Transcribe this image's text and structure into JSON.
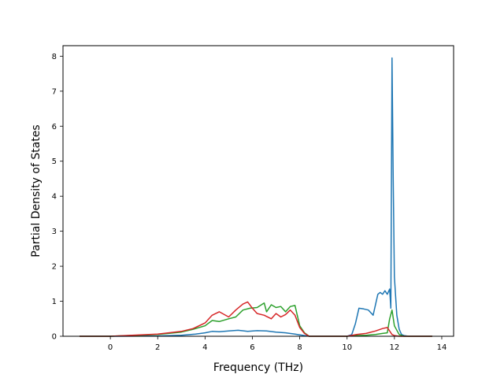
{
  "chart_data": {
    "type": "line",
    "title": "",
    "xlabel": "Frequency (THz)",
    "ylabel": "Partial Density of States",
    "xlim": [
      -2.0,
      14.5
    ],
    "ylim": [
      0,
      8.3
    ],
    "xticks": [
      0,
      2,
      4,
      6,
      8,
      10,
      12,
      14
    ],
    "yticks": [
      0,
      1,
      2,
      3,
      4,
      5,
      6,
      7,
      8
    ],
    "grid": false,
    "legend": "none",
    "series": [
      {
        "color": "#1f77b4",
        "x": [
          -1.3,
          0.0,
          2.0,
          3.0,
          3.6,
          4.0,
          4.3,
          4.6,
          5.0,
          5.4,
          5.8,
          6.2,
          6.6,
          7.0,
          7.4,
          7.8,
          8.0,
          8.2,
          8.4,
          9.0,
          10.0,
          10.2,
          10.35,
          10.5,
          10.7,
          10.9,
          11.1,
          11.3,
          11.4,
          11.5,
          11.6,
          11.7,
          11.8,
          11.85,
          11.9,
          11.95,
          12.0,
          12.1,
          12.2,
          12.3,
          12.4,
          12.6,
          13.0,
          13.6
        ],
        "y": [
          0.0,
          0.0,
          0.01,
          0.03,
          0.06,
          0.1,
          0.14,
          0.13,
          0.15,
          0.17,
          0.14,
          0.16,
          0.15,
          0.12,
          0.1,
          0.06,
          0.04,
          0.02,
          0.0,
          0.0,
          0.0,
          0.05,
          0.35,
          0.8,
          0.78,
          0.75,
          0.6,
          1.2,
          1.25,
          1.2,
          1.3,
          1.2,
          1.35,
          0.8,
          7.95,
          4.5,
          1.7,
          0.6,
          0.2,
          0.05,
          0.02,
          0.0,
          0.0,
          0.0
        ]
      },
      {
        "color": "#2ca02c",
        "x": [
          -1.3,
          0.0,
          2.0,
          3.0,
          3.5,
          4.0,
          4.3,
          4.6,
          5.0,
          5.3,
          5.6,
          5.9,
          6.2,
          6.5,
          6.6,
          6.8,
          7.0,
          7.2,
          7.4,
          7.6,
          7.8,
          8.0,
          8.2,
          8.4,
          9.0,
          10.0,
          10.4,
          10.8,
          11.2,
          11.5,
          11.7,
          11.8,
          11.9,
          12.0,
          12.2,
          12.4,
          13.0,
          13.6
        ],
        "y": [
          0.0,
          0.0,
          0.05,
          0.12,
          0.2,
          0.3,
          0.45,
          0.42,
          0.5,
          0.55,
          0.75,
          0.8,
          0.82,
          0.95,
          0.7,
          0.9,
          0.82,
          0.85,
          0.7,
          0.85,
          0.88,
          0.3,
          0.1,
          0.0,
          0.0,
          0.0,
          0.02,
          0.03,
          0.05,
          0.08,
          0.1,
          0.5,
          0.75,
          0.3,
          0.05,
          0.0,
          0.0,
          0.0
        ]
      },
      {
        "color": "#d62728",
        "x": [
          -1.3,
          0.0,
          2.0,
          3.0,
          3.5,
          4.0,
          4.3,
          4.6,
          5.0,
          5.3,
          5.6,
          5.8,
          6.0,
          6.2,
          6.5,
          6.8,
          7.0,
          7.2,
          7.4,
          7.6,
          7.8,
          8.0,
          8.2,
          8.4,
          9.0,
          10.0,
          10.4,
          10.8,
          11.2,
          11.5,
          11.7,
          11.8,
          11.9,
          12.0,
          12.2,
          12.4,
          13.0,
          13.6
        ],
        "y": [
          0.0,
          0.0,
          0.06,
          0.14,
          0.22,
          0.38,
          0.6,
          0.7,
          0.55,
          0.75,
          0.92,
          0.98,
          0.8,
          0.65,
          0.6,
          0.5,
          0.65,
          0.55,
          0.62,
          0.75,
          0.6,
          0.25,
          0.08,
          0.0,
          0.0,
          0.0,
          0.05,
          0.08,
          0.15,
          0.22,
          0.25,
          0.15,
          0.05,
          0.02,
          0.0,
          0.0,
          0.0,
          0.0
        ]
      }
    ]
  }
}
